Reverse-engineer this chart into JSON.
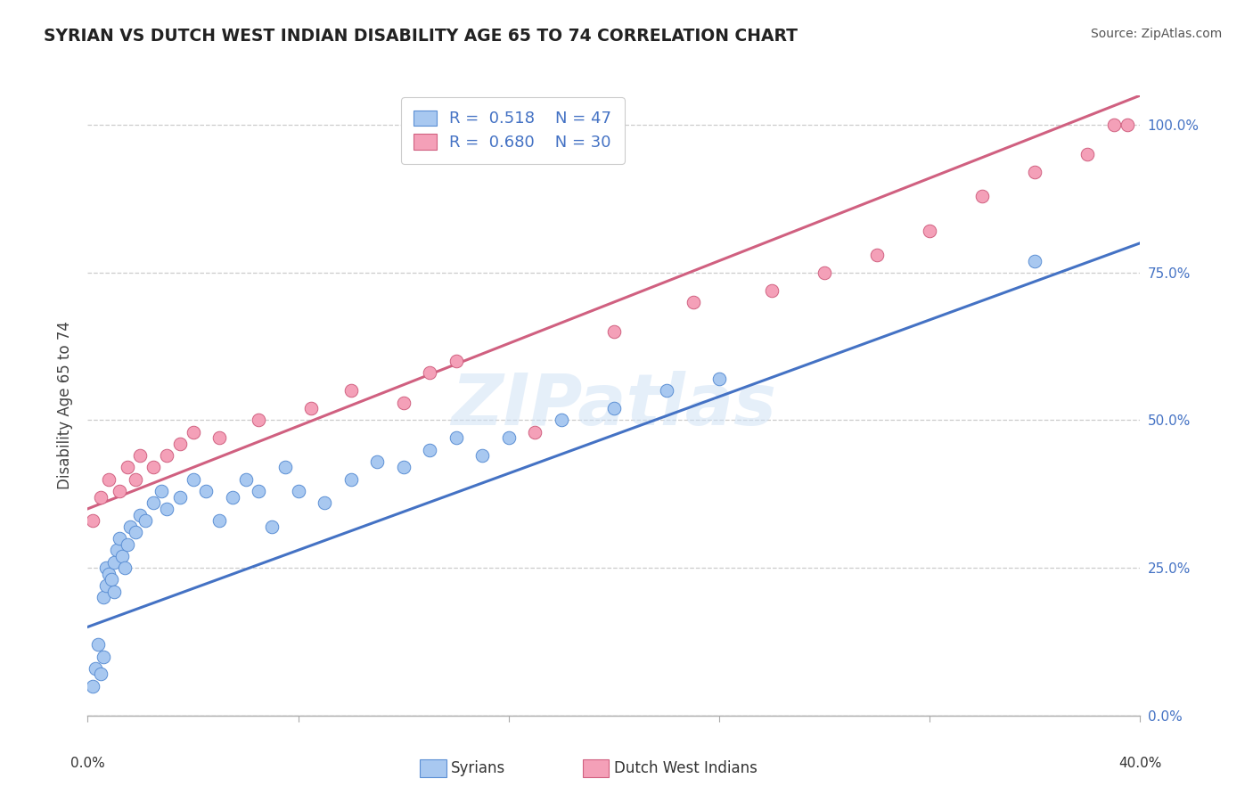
{
  "title": "SYRIAN VS DUTCH WEST INDIAN DISABILITY AGE 65 TO 74 CORRELATION CHART",
  "source": "Source: ZipAtlas.com",
  "ylabel": "Disability Age 65 to 74",
  "ytick_labels": [
    "0.0%",
    "25.0%",
    "50.0%",
    "75.0%",
    "100.0%"
  ],
  "ytick_values": [
    0,
    25,
    50,
    75,
    100
  ],
  "xlim": [
    0,
    40
  ],
  "ylim": [
    0,
    105
  ],
  "watermark": "ZIPatlas",
  "blue_color": "#a8c8f0",
  "pink_color": "#f4a0b8",
  "blue_edge_color": "#5b8fd4",
  "pink_edge_color": "#d06080",
  "blue_line_color": "#4472c4",
  "pink_line_color": "#d06080",
  "title_color": "#222222",
  "label_blue_color": "#4472c4",
  "source_color": "#555555",
  "background_color": "#ffffff",
  "grid_color": "#cccccc",
  "blue_intercept": 15.0,
  "blue_slope": 1.625,
  "pink_intercept": 35.0,
  "pink_slope": 1.75,
  "syrians_x": [
    0.2,
    0.3,
    0.4,
    0.5,
    0.6,
    0.6,
    0.7,
    0.7,
    0.8,
    0.9,
    1.0,
    1.0,
    1.1,
    1.2,
    1.3,
    1.4,
    1.5,
    1.6,
    1.8,
    2.0,
    2.2,
    2.5,
    2.8,
    3.0,
    3.5,
    4.0,
    4.5,
    5.0,
    5.5,
    6.0,
    6.5,
    7.0,
    7.5,
    8.0,
    9.0,
    10.0,
    11.0,
    12.0,
    13.0,
    14.0,
    15.0,
    16.0,
    18.0,
    20.0,
    22.0,
    24.0,
    36.0
  ],
  "syrians_y": [
    5,
    8,
    12,
    7,
    10,
    20,
    22,
    25,
    24,
    23,
    26,
    21,
    28,
    30,
    27,
    25,
    29,
    32,
    31,
    34,
    33,
    36,
    38,
    35,
    37,
    40,
    38,
    33,
    37,
    40,
    38,
    32,
    42,
    38,
    36,
    40,
    43,
    42,
    45,
    47,
    44,
    47,
    50,
    52,
    55,
    57,
    77
  ],
  "dwi_x": [
    0.2,
    0.5,
    0.8,
    1.2,
    1.5,
    1.8,
    2.0,
    2.5,
    3.0,
    3.5,
    4.0,
    5.0,
    6.5,
    8.5,
    10.0,
    12.0,
    13.0,
    14.0,
    17.0,
    20.0,
    23.0,
    26.0,
    28.0,
    30.0,
    32.0,
    34.0,
    36.0,
    38.0,
    39.0,
    39.5
  ],
  "dwi_y": [
    33,
    37,
    40,
    38,
    42,
    40,
    44,
    42,
    44,
    46,
    48,
    47,
    50,
    52,
    55,
    53,
    58,
    60,
    48,
    65,
    70,
    72,
    75,
    78,
    82,
    88,
    92,
    95,
    100,
    100
  ]
}
